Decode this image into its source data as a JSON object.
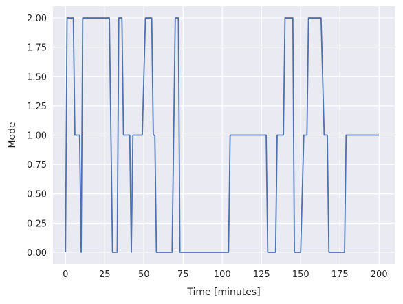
{
  "chart_data": {
    "type": "line",
    "title": "",
    "xlabel": "Time [minutes]",
    "ylabel": "Mode",
    "xlim": [
      -8,
      210
    ],
    "ylim": [
      -0.1,
      2.1
    ],
    "xticks": [
      0,
      25,
      50,
      75,
      100,
      125,
      150,
      175,
      200
    ],
    "xtick_labels": [
      "0",
      "25",
      "50",
      "75",
      "100",
      "125",
      "150",
      "175",
      "200"
    ],
    "yticks": [
      0,
      0.25,
      0.5,
      0.75,
      1,
      1.25,
      1.5,
      1.75,
      2
    ],
    "ytick_labels": [
      "0.00",
      "0.25",
      "0.50",
      "0.75",
      "1.00",
      "1.25",
      "1.50",
      "1.75",
      "2.00"
    ],
    "grid": true,
    "colors": {
      "background": "#eaeaf2",
      "grid": "#ffffff",
      "line": "#4c72b0",
      "text": "#262626"
    },
    "series": [
      {
        "x": [
          0,
          1,
          5,
          6,
          9,
          10,
          11,
          28,
          30,
          33,
          34,
          36,
          37,
          41,
          42,
          43,
          49,
          51,
          55,
          56,
          57,
          58,
          68,
          70,
          72,
          73,
          104,
          105,
          128,
          129,
          134,
          135,
          139,
          140,
          145,
          146,
          150,
          152,
          154,
          155,
          163,
          165,
          167,
          168,
          178,
          179,
          200
        ],
        "y": [
          0,
          2,
          2,
          1,
          1,
          0,
          2,
          2,
          0,
          0,
          2,
          2,
          1,
          1,
          0,
          1,
          1,
          2,
          2,
          1,
          1,
          0,
          0,
          2,
          2,
          0,
          0,
          1,
          1,
          0,
          0,
          1,
          1,
          2,
          2,
          0,
          0,
          1,
          1,
          2,
          2,
          1,
          1,
          0,
          0,
          1,
          1
        ]
      }
    ]
  }
}
